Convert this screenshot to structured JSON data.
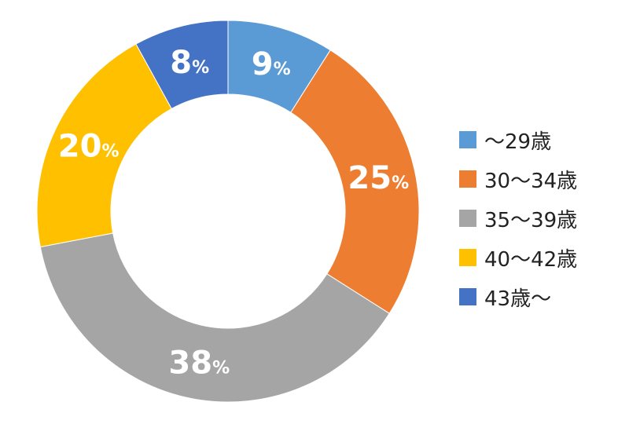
{
  "chart_data": {
    "type": "pie",
    "donut": true,
    "start": "12 o'clock",
    "direction": "clockwise",
    "percent_suffix": "%",
    "slices": [
      {
        "label": "～29歳",
        "value": 9,
        "display": "9",
        "color": "#5B9BD5"
      },
      {
        "label": "30～34歳",
        "value": 25,
        "display": "25",
        "color": "#ED7D31"
      },
      {
        "label": "35～39歳",
        "value": 38,
        "display": "38",
        "color": "#A5A5A5"
      },
      {
        "label": "40～42歳",
        "value": 20,
        "display": "20",
        "color": "#FFC000"
      },
      {
        "label": "43歳～",
        "value": 8,
        "display": "8",
        "color": "#4472C4"
      }
    ],
    "legend_position": "right"
  }
}
